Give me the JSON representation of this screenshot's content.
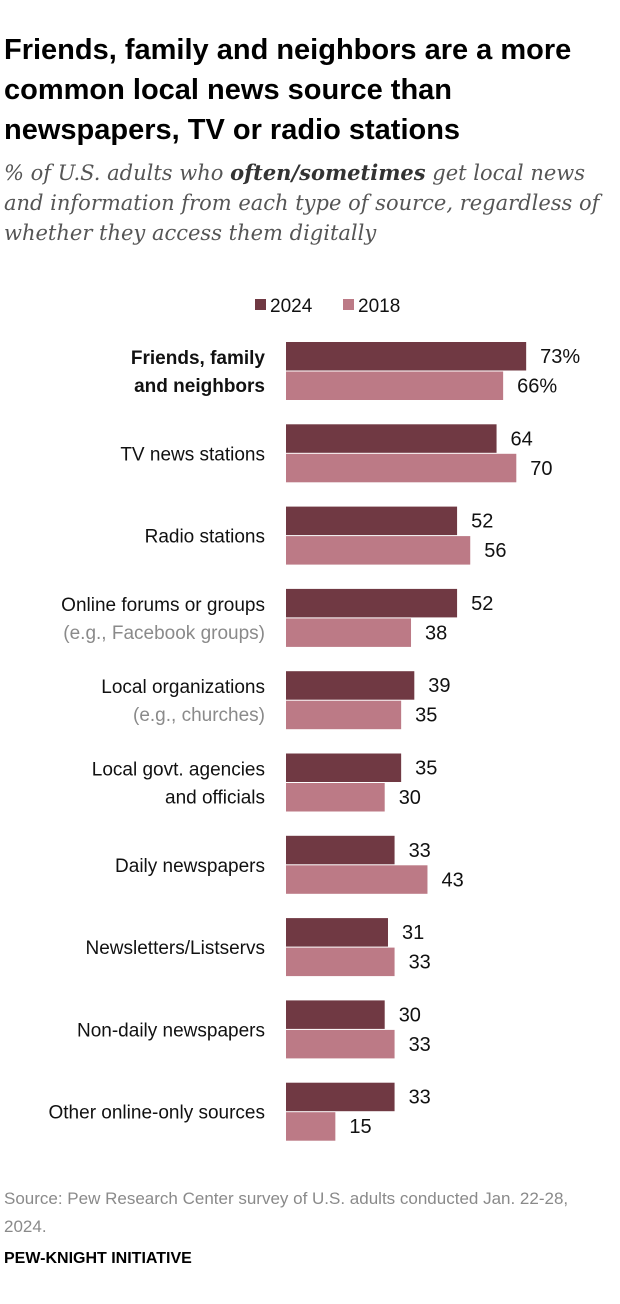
{
  "title": "Friends, family and neighbors are a more common local news source than newspapers, TV or radio stations",
  "subtitle": {
    "before": "% of U.S. adults who ",
    "emphasis": "often/sometimes",
    "after": " get local news and information from each type of source, regardless of whether they access them digitally"
  },
  "source": "Source: Pew Research Center survey of U.S. adults conducted Jan. 22-28, 2024.",
  "org": "PEW-KNIGHT INITIATIVE",
  "colors": {
    "2024": "#703943",
    "2018": "#bc7a86",
    "label": "#111111",
    "sublabel": "#8a8a8a"
  },
  "chart_data": {
    "type": "bar",
    "orientation": "horizontal",
    "xlim": [
      0,
      100
    ],
    "legend_position": "top",
    "grid": false,
    "series": [
      {
        "name": "2024",
        "values": [
          73,
          64,
          52,
          52,
          39,
          35,
          33,
          31,
          30,
          33
        ]
      },
      {
        "name": "2018",
        "values": [
          66,
          70,
          56,
          38,
          35,
          30,
          43,
          33,
          33,
          15
        ]
      }
    ],
    "value_labels": [
      [
        "73%",
        "64",
        "52",
        "52",
        "39",
        "35",
        "33",
        "31",
        "30",
        "33"
      ],
      [
        "66%",
        "70",
        "56",
        "38",
        "35",
        "30",
        "43",
        "33",
        "33",
        "15"
      ]
    ],
    "categories": [
      {
        "lines": [
          "Friends, family",
          "and neighbors"
        ],
        "bold": true
      },
      {
        "lines": [
          "TV news stations"
        ]
      },
      {
        "lines": [
          "Radio stations"
        ]
      },
      {
        "lines": [
          "Online forums or groups"
        ],
        "note": "(e.g., Facebook groups)"
      },
      {
        "lines": [
          "Local organizations"
        ],
        "note": "(e.g., churches)"
      },
      {
        "lines": [
          "Local govt. agencies",
          "and officials"
        ]
      },
      {
        "lines": [
          "Daily newspapers"
        ]
      },
      {
        "lines": [
          "Newsletters/Listservs"
        ]
      },
      {
        "lines": [
          "Non-daily newspapers"
        ]
      },
      {
        "lines": [
          "Other online-only sources"
        ]
      }
    ]
  }
}
